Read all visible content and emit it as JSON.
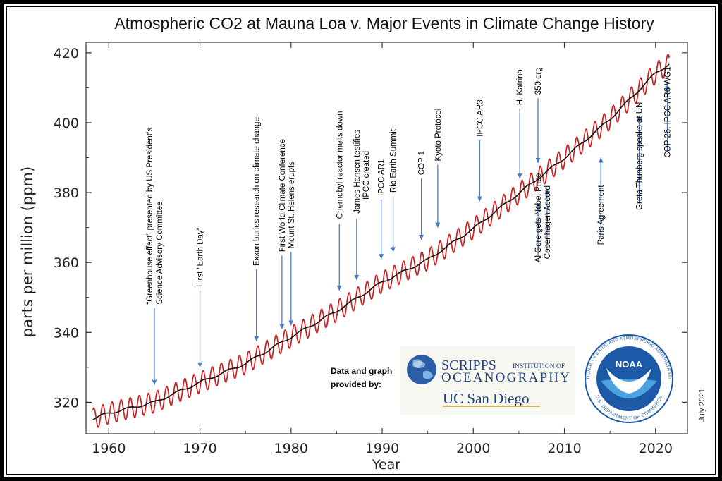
{
  "colors": {
    "seasonal_line": "#cc1f1f",
    "trend_line": "#111111",
    "arrow": "#4a7bbf",
    "axis": "#333333",
    "scripps_blue": "#1f3f7a",
    "noaa_blue": "#1c5aa8"
  },
  "chart_data": {
    "type": "line",
    "title": "Atmospheric CO2 at Mauna Loa v. Major Events in Climate Change History",
    "xlabel": "Year",
    "ylabel": "parts per million (ppm)",
    "xlim": [
      1957.5,
      2023.5
    ],
    "ylim": [
      311,
      423
    ],
    "x_ticks": [
      1960,
      1970,
      1980,
      1990,
      2000,
      2010,
      2020
    ],
    "y_ticks": [
      320,
      340,
      360,
      380,
      400,
      420
    ],
    "grid": false,
    "series": [
      {
        "role": "monthly (seasonal cycle)",
        "x": [
          1958.25,
          1960,
          1965,
          1970,
          1975,
          1980,
          1985,
          1990,
          1995,
          2000,
          2005,
          2010,
          2015,
          2020,
          2021.5
        ],
        "values": [
          315.3,
          316.9,
          320.0,
          325.7,
          331.1,
          338.7,
          346.1,
          354.4,
          360.8,
          369.7,
          379.8,
          389.9,
          401.0,
          414.2,
          416.8
        ],
        "seasonal_amplitude": 3
      },
      {
        "role": "trend",
        "x": [
          1958.25,
          1960,
          1965,
          1970,
          1975,
          1980,
          1985,
          1990,
          1995,
          2000,
          2005,
          2010,
          2015,
          2020,
          2021.5
        ],
        "values": [
          315.3,
          316.9,
          320.0,
          325.7,
          331.1,
          338.7,
          346.1,
          354.4,
          360.8,
          369.7,
          379.8,
          389.9,
          401.0,
          414.2,
          416.8
        ]
      }
    ],
    "annotations": [
      {
        "lines": [
          "“Greenhouse effect” presented by US President’s",
          "Science Advisory Committee"
        ],
        "year": 1965,
        "direction": "down",
        "arrow_from": 347,
        "arrow_to": 325,
        "text_base": 348
      },
      {
        "lines": [
          "First “Earth Day”"
        ],
        "year": 1970,
        "direction": "down",
        "arrow_from": 352,
        "arrow_to": 330,
        "text_base": 353
      },
      {
        "lines": [
          "Exxon buries research on climate change"
        ],
        "year": 1976.2,
        "direction": "down",
        "arrow_from": 358,
        "arrow_to": 337.5,
        "text_base": 359
      },
      {
        "lines": [
          "First World Climate Conference"
        ],
        "year": 1979,
        "direction": "down",
        "arrow_from": 362,
        "arrow_to": 341,
        "text_base": 363
      },
      {
        "lines": [
          "Mount St. Helens erupts"
        ],
        "year": 1980,
        "direction": "down",
        "arrow_from": 363,
        "arrow_to": 342,
        "text_base": 364
      },
      {
        "lines": [
          "Chernobyl reactor melts down"
        ],
        "year": 1985.3,
        "direction": "down",
        "arrow_from": 371,
        "arrow_to": 352,
        "text_base": 372.5
      },
      {
        "lines": [
          "James Hansen testifies"
        ],
        "year": 1987.2,
        "direction": "down",
        "arrow_from": 372.5,
        "arrow_to": 355,
        "text_base": 374
      },
      {
        "lines": [
          "IPCC created"
        ],
        "year": 1988.2,
        "direction": "none",
        "text_base": 378
      },
      {
        "lines": [
          "IPCC AR1"
        ],
        "year": 1989.9,
        "direction": "down",
        "arrow_from": 378,
        "arrow_to": 361,
        "text_base": 379
      },
      {
        "lines": [
          "Rio Earth Summit"
        ],
        "year": 1991.2,
        "direction": "down",
        "arrow_from": 379,
        "arrow_to": 363,
        "text_base": 380
      },
      {
        "lines": [
          "COP 1"
        ],
        "year": 1994.3,
        "direction": "down",
        "arrow_from": 384,
        "arrow_to": 366.5,
        "text_base": 385
      },
      {
        "lines": [
          "Kyoto Protocol"
        ],
        "year": 1996.1,
        "direction": "down",
        "arrow_from": 388,
        "arrow_to": 370,
        "text_base": 389
      },
      {
        "lines": [
          "IPCC AR3"
        ],
        "year": 2000.7,
        "direction": "down",
        "arrow_from": 395,
        "arrow_to": 377.5,
        "text_base": 396
      },
      {
        "lines": [
          "H. Katrina"
        ],
        "year": 2005.1,
        "direction": "down",
        "arrow_from": 404,
        "arrow_to": 384,
        "text_base": 405
      },
      {
        "lines": [
          "350.org"
        ],
        "year": 2007.1,
        "direction": "down",
        "arrow_from": 407,
        "arrow_to": 388.5,
        "text_base": 408
      },
      {
        "lines": [
          "Al Gore gets Nobel Prize"
        ],
        "year": 2007.1,
        "direction": "up",
        "arrow_from": 362,
        "arrow_to": 377,
        "text_base": 360
      },
      {
        "lines": [
          "Copenhagen Accord"
        ],
        "year": 2008.1,
        "direction": "up",
        "arrow_from": 363,
        "arrow_to": 381,
        "text_base": 361
      },
      {
        "lines": [
          "Paris Agreement"
        ],
        "year": 2014,
        "direction": "up",
        "arrow_from": 367,
        "arrow_to": 390,
        "text_base": 365
      },
      {
        "lines": [
          "Greta Thunberg speaks at UN"
        ],
        "year": 2018.2,
        "direction": "up",
        "arrow_from": 377,
        "arrow_to": 402,
        "text_base": 375
      },
      {
        "lines": [
          "COP 26, IPCC AR6 WG1"
        ],
        "year": 2021.3,
        "direction": "up",
        "arrow_from": 392,
        "arrow_to": 411,
        "text_base": 390
      }
    ]
  },
  "credit": {
    "line1": "Data and graph",
    "line2": "provided by:"
  },
  "logos": {
    "scripps_line1": "SCRIPPS",
    "scripps_small": "INSTITUTION OF",
    "scripps_line2": "OCEANOGRAPHY",
    "ucsd": "UC San Diego",
    "noaa_center": "NOAA",
    "noaa_ring_top": "NATIONAL OCEANIC AND ATMOSPHERIC ADMINISTRATION",
    "noaa_ring_bottom": "U.S. DEPARTMENT OF COMMERCE"
  },
  "date_stamp": "July 2021"
}
